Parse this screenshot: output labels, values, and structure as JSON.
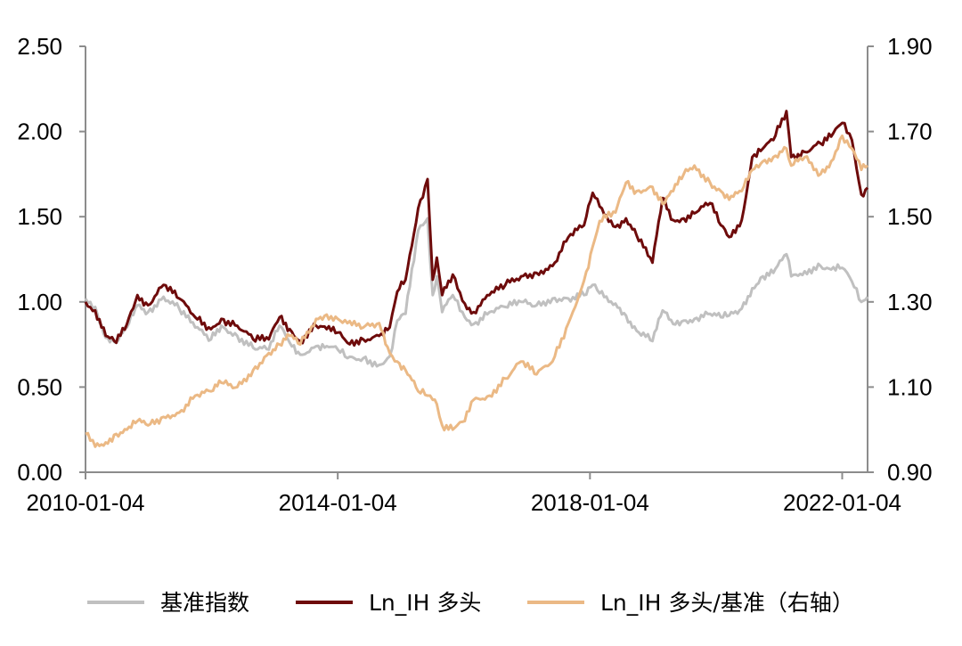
{
  "chart_data": {
    "type": "line",
    "x_ticks": [
      "2010-01-04",
      "2014-01-04",
      "2018-01-04",
      "2022-01-04"
    ],
    "x_range": [
      "2010-01-04",
      "2022-05-31"
    ],
    "y_left": {
      "range": [
        0,
        2.5
      ],
      "ticks": [
        "0.00",
        "0.50",
        "1.00",
        "1.50",
        "2.00",
        "2.50"
      ]
    },
    "y_right": {
      "range": [
        0.9,
        1.9
      ],
      "ticks": [
        "0.90",
        "1.10",
        "1.30",
        "1.50",
        "1.70",
        "1.90"
      ]
    },
    "grid": false,
    "legend_position": "bottom",
    "series": [
      {
        "name": "基准指数",
        "axis": "left",
        "color": "#c0c0c0",
        "points": [
          [
            "2010-01-04",
            1.02
          ],
          [
            "2010-03-01",
            0.97
          ],
          [
            "2010-05-01",
            0.79
          ],
          [
            "2010-07-01",
            0.76
          ],
          [
            "2010-09-01",
            0.85
          ],
          [
            "2010-11-01",
            0.98
          ],
          [
            "2011-01-01",
            0.94
          ],
          [
            "2011-04-01",
            1.03
          ],
          [
            "2011-07-01",
            0.96
          ],
          [
            "2011-10-01",
            0.85
          ],
          [
            "2012-01-01",
            0.78
          ],
          [
            "2012-03-01",
            0.86
          ],
          [
            "2012-06-01",
            0.8
          ],
          [
            "2012-09-01",
            0.73
          ],
          [
            "2012-12-01",
            0.72
          ],
          [
            "2013-02-01",
            0.86
          ],
          [
            "2013-04-01",
            0.76
          ],
          [
            "2013-06-01",
            0.69
          ],
          [
            "2013-09-01",
            0.74
          ],
          [
            "2013-11-01",
            0.74
          ],
          [
            "2014-01-04",
            0.72
          ],
          [
            "2014-03-01",
            0.67
          ],
          [
            "2014-06-01",
            0.67
          ],
          [
            "2014-09-01",
            0.63
          ],
          [
            "2014-11-01",
            0.68
          ],
          [
            "2014-12-15",
            0.89
          ],
          [
            "2015-02-01",
            0.93
          ],
          [
            "2015-04-15",
            1.42
          ],
          [
            "2015-06-08",
            1.49
          ],
          [
            "2015-07-08",
            1.04
          ],
          [
            "2015-08-01",
            1.15
          ],
          [
            "2015-09-01",
            0.94
          ],
          [
            "2015-11-01",
            1.04
          ],
          [
            "2016-01-10",
            0.91
          ],
          [
            "2016-03-01",
            0.87
          ],
          [
            "2016-06-01",
            0.94
          ],
          [
            "2016-09-01",
            0.97
          ],
          [
            "2016-12-01",
            1.0
          ],
          [
            "2017-03-01",
            0.98
          ],
          [
            "2017-06-01",
            1.02
          ],
          [
            "2017-09-01",
            1.02
          ],
          [
            "2017-12-01",
            1.04
          ],
          [
            "2018-01-20",
            1.1
          ],
          [
            "2018-03-01",
            1.05
          ],
          [
            "2018-06-01",
            0.99
          ],
          [
            "2018-08-01",
            0.92
          ],
          [
            "2018-10-01",
            0.83
          ],
          [
            "2019-01-01",
            0.77
          ],
          [
            "2019-03-01",
            0.95
          ],
          [
            "2019-05-01",
            0.87
          ],
          [
            "2019-07-01",
            0.89
          ],
          [
            "2019-09-01",
            0.9
          ],
          [
            "2019-12-01",
            0.93
          ],
          [
            "2020-02-01",
            0.91
          ],
          [
            "2020-03-20",
            0.92
          ],
          [
            "2020-06-01",
            0.96
          ],
          [
            "2020-08-01",
            1.08
          ],
          [
            "2020-10-01",
            1.15
          ],
          [
            "2020-12-01",
            1.17
          ],
          [
            "2021-02-15",
            1.28
          ],
          [
            "2021-03-15",
            1.15
          ],
          [
            "2021-06-01",
            1.18
          ],
          [
            "2021-09-01",
            1.21
          ],
          [
            "2021-11-01",
            1.19
          ],
          [
            "2022-01-04",
            1.2
          ],
          [
            "2022-03-01",
            1.12
          ],
          [
            "2022-04-25",
            1.0
          ],
          [
            "2022-05-31",
            1.03
          ]
        ]
      },
      {
        "name": "Ln_IH 多头",
        "axis": "left",
        "color": "#6e0b0b",
        "points": [
          [
            "2010-01-04",
            1.0
          ],
          [
            "2010-03-01",
            0.95
          ],
          [
            "2010-05-01",
            0.8
          ],
          [
            "2010-07-01",
            0.76
          ],
          [
            "2010-09-01",
            0.87
          ],
          [
            "2010-11-01",
            1.04
          ],
          [
            "2011-01-01",
            0.98
          ],
          [
            "2011-04-01",
            1.1
          ],
          [
            "2011-07-01",
            1.02
          ],
          [
            "2011-10-01",
            0.91
          ],
          [
            "2012-01-01",
            0.84
          ],
          [
            "2012-03-01",
            0.9
          ],
          [
            "2012-06-01",
            0.86
          ],
          [
            "2012-09-01",
            0.78
          ],
          [
            "2012-12-01",
            0.78
          ],
          [
            "2013-02-01",
            0.91
          ],
          [
            "2013-04-01",
            0.84
          ],
          [
            "2013-06-01",
            0.77
          ],
          [
            "2013-09-01",
            0.86
          ],
          [
            "2013-11-01",
            0.84
          ],
          [
            "2014-01-04",
            0.82
          ],
          [
            "2014-03-01",
            0.76
          ],
          [
            "2014-06-01",
            0.78
          ],
          [
            "2014-09-01",
            0.8
          ],
          [
            "2014-11-01",
            0.85
          ],
          [
            "2014-12-15",
            1.06
          ],
          [
            "2015-02-01",
            1.13
          ],
          [
            "2015-04-15",
            1.55
          ],
          [
            "2015-06-08",
            1.72
          ],
          [
            "2015-07-08",
            1.13
          ],
          [
            "2015-08-01",
            1.26
          ],
          [
            "2015-09-01",
            1.04
          ],
          [
            "2015-11-01",
            1.16
          ],
          [
            "2016-01-10",
            0.99
          ],
          [
            "2016-03-01",
            0.94
          ],
          [
            "2016-06-01",
            1.04
          ],
          [
            "2016-09-01",
            1.1
          ],
          [
            "2016-12-01",
            1.15
          ],
          [
            "2017-03-01",
            1.17
          ],
          [
            "2017-06-01",
            1.21
          ],
          [
            "2017-09-01",
            1.38
          ],
          [
            "2017-12-01",
            1.45
          ],
          [
            "2018-01-20",
            1.64
          ],
          [
            "2018-03-01",
            1.56
          ],
          [
            "2018-06-01",
            1.44
          ],
          [
            "2018-08-01",
            1.49
          ],
          [
            "2018-10-01",
            1.39
          ],
          [
            "2019-01-01",
            1.23
          ],
          [
            "2019-03-01",
            1.61
          ],
          [
            "2019-05-01",
            1.48
          ],
          [
            "2019-07-01",
            1.49
          ],
          [
            "2019-09-01",
            1.52
          ],
          [
            "2019-12-01",
            1.58
          ],
          [
            "2020-02-01",
            1.45
          ],
          [
            "2020-03-20",
            1.38
          ],
          [
            "2020-06-01",
            1.48
          ],
          [
            "2020-08-01",
            1.85
          ],
          [
            "2020-10-01",
            1.9
          ],
          [
            "2020-12-01",
            1.95
          ],
          [
            "2021-02-15",
            2.12
          ],
          [
            "2021-03-15",
            1.85
          ],
          [
            "2021-06-01",
            1.88
          ],
          [
            "2021-09-01",
            1.93
          ],
          [
            "2021-11-01",
            1.97
          ],
          [
            "2022-01-04",
            2.05
          ],
          [
            "2022-03-01",
            1.95
          ],
          [
            "2022-04-25",
            1.63
          ],
          [
            "2022-05-31",
            1.67
          ]
        ]
      },
      {
        "name": "Ln_IH 多头/基准（右轴）",
        "axis": "right",
        "color": "#ebb985",
        "points": [
          [
            "2010-01-04",
            0.99
          ],
          [
            "2010-03-01",
            0.96
          ],
          [
            "2010-05-01",
            0.97
          ],
          [
            "2010-07-01",
            0.99
          ],
          [
            "2010-09-01",
            1.0
          ],
          [
            "2010-11-01",
            1.02
          ],
          [
            "2011-01-01",
            1.01
          ],
          [
            "2011-04-01",
            1.03
          ],
          [
            "2011-07-01",
            1.04
          ],
          [
            "2011-10-01",
            1.08
          ],
          [
            "2012-01-01",
            1.09
          ],
          [
            "2012-03-01",
            1.11
          ],
          [
            "2012-06-01",
            1.1
          ],
          [
            "2012-09-01",
            1.14
          ],
          [
            "2012-12-01",
            1.18
          ],
          [
            "2013-02-01",
            1.2
          ],
          [
            "2013-04-01",
            1.22
          ],
          [
            "2013-06-01",
            1.2
          ],
          [
            "2013-09-01",
            1.26
          ],
          [
            "2013-11-01",
            1.27
          ],
          [
            "2014-01-04",
            1.26
          ],
          [
            "2014-03-01",
            1.25
          ],
          [
            "2014-06-01",
            1.24
          ],
          [
            "2014-09-01",
            1.25
          ],
          [
            "2014-11-01",
            1.18
          ],
          [
            "2014-12-15",
            1.16
          ],
          [
            "2015-02-01",
            1.14
          ],
          [
            "2015-04-15",
            1.09
          ],
          [
            "2015-06-08",
            1.08
          ],
          [
            "2015-07-08",
            1.07
          ],
          [
            "2015-08-01",
            1.06
          ],
          [
            "2015-09-01",
            1.01
          ],
          [
            "2015-11-01",
            1.0
          ],
          [
            "2016-01-10",
            1.02
          ],
          [
            "2016-03-01",
            1.07
          ],
          [
            "2016-06-01",
            1.08
          ],
          [
            "2016-09-01",
            1.12
          ],
          [
            "2016-12-01",
            1.16
          ],
          [
            "2017-03-01",
            1.13
          ],
          [
            "2017-06-01",
            1.16
          ],
          [
            "2017-09-01",
            1.25
          ],
          [
            "2017-12-01",
            1.35
          ],
          [
            "2018-01-20",
            1.43
          ],
          [
            "2018-03-01",
            1.49
          ],
          [
            "2018-06-01",
            1.51
          ],
          [
            "2018-08-01",
            1.58
          ],
          [
            "2018-10-01",
            1.56
          ],
          [
            "2019-01-01",
            1.57
          ],
          [
            "2019-03-01",
            1.53
          ],
          [
            "2019-05-01",
            1.56
          ],
          [
            "2019-07-01",
            1.6
          ],
          [
            "2019-09-01",
            1.62
          ],
          [
            "2019-12-01",
            1.58
          ],
          [
            "2020-02-01",
            1.56
          ],
          [
            "2020-03-20",
            1.54
          ],
          [
            "2020-06-01",
            1.56
          ],
          [
            "2020-08-01",
            1.61
          ],
          [
            "2020-10-01",
            1.63
          ],
          [
            "2020-12-01",
            1.64
          ],
          [
            "2021-02-15",
            1.66
          ],
          [
            "2021-03-15",
            1.62
          ],
          [
            "2021-06-01",
            1.64
          ],
          [
            "2021-09-01",
            1.6
          ],
          [
            "2021-11-01",
            1.63
          ],
          [
            "2022-01-04",
            1.69
          ],
          [
            "2022-03-01",
            1.66
          ],
          [
            "2022-04-25",
            1.61
          ],
          [
            "2022-05-31",
            1.62
          ]
        ]
      }
    ]
  }
}
